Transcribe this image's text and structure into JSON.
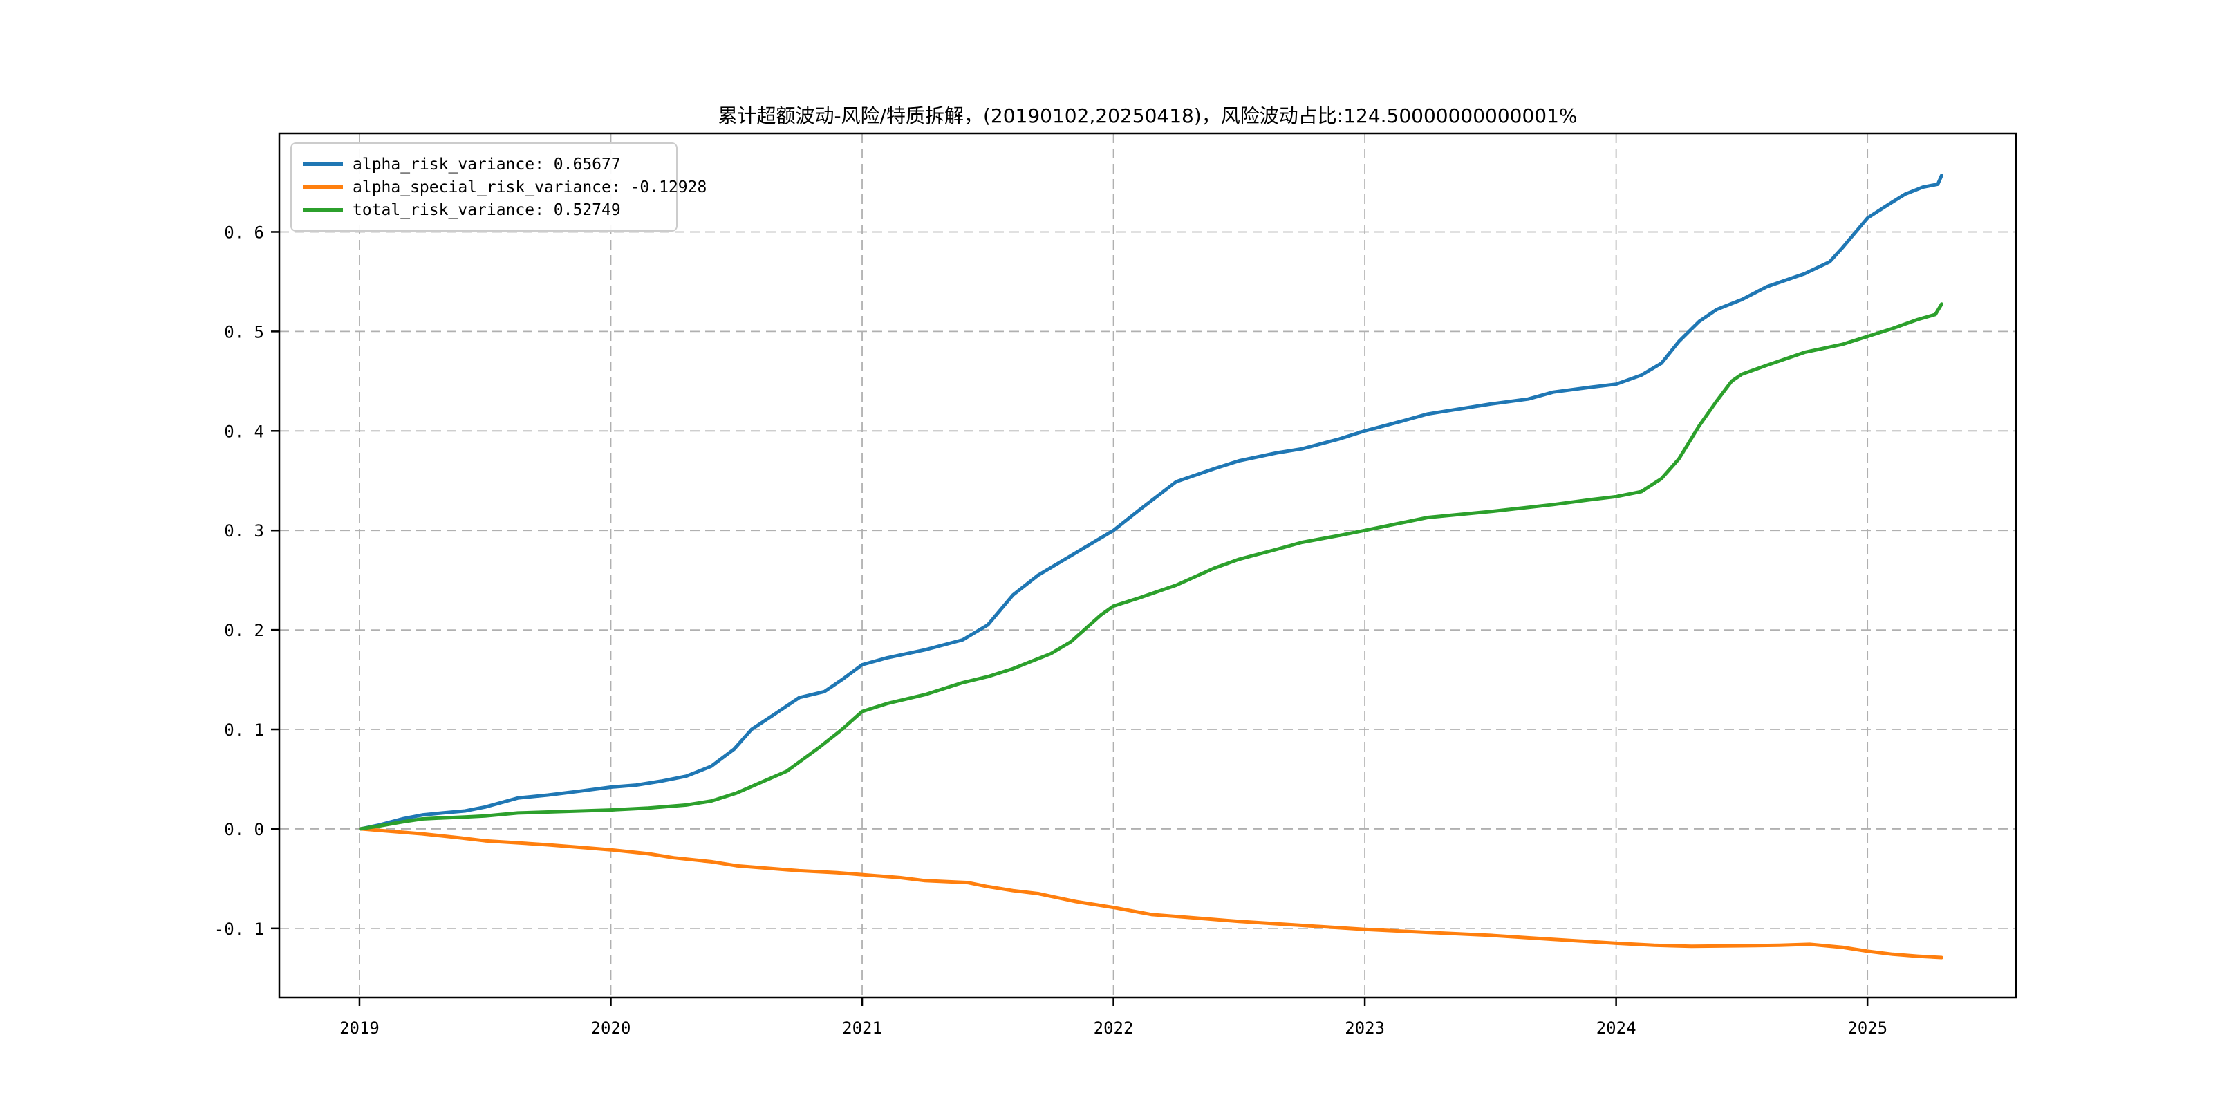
{
  "title": "累计超额波动-风险/特质拆解，(20190102,20250418)，风险波动占比:124.50000000000001%",
  "colors": {
    "blue": "#1f77b4",
    "orange": "#ff7f0e",
    "green": "#2ca02c",
    "grid": "#b0b0b0",
    "frame": "#000000",
    "background": "#ffffff",
    "legend_border": "#cccccc"
  },
  "legend": {
    "position": "upper left",
    "items": [
      {
        "label": "alpha_risk_variance: 0.65677",
        "color": "#1f77b4"
      },
      {
        "label": "alpha_special_risk_variance: -0.12928",
        "color": "#ff7f0e"
      },
      {
        "label": "total_risk_variance: 0.52749",
        "color": "#2ca02c"
      }
    ]
  },
  "chart_data": {
    "type": "line",
    "title": "累计超额波动-风险/特质拆解，(20190102,20250418)，风险波动占比:124.50000000000001%",
    "start_date": "20190102",
    "end_date": "20250418",
    "risk_vol_ratio_label": "124.50000000000001%",
    "xlabel": "",
    "ylabel": "",
    "grid": true,
    "grid_style": "dashed",
    "legend_position": "upper left",
    "xlim": [
      2018.681,
      2025.591
    ],
    "ylim": [
      -0.1696,
      0.699
    ],
    "x_ticks": [
      2019,
      2020,
      2021,
      2022,
      2023,
      2024,
      2025
    ],
    "x_tick_labels": [
      "2019",
      "2020",
      "2021",
      "2022",
      "2023",
      "2024",
      "2025"
    ],
    "y_ticks": [
      -0.1,
      0.0,
      0.1,
      0.2,
      0.3,
      0.4,
      0.5,
      0.6
    ],
    "y_tick_labels": [
      "-0. 1",
      "0. 0",
      "0. 1",
      "0. 2",
      "0. 3",
      "0. 4",
      "0. 5",
      "0. 6"
    ],
    "series": [
      {
        "name": "alpha_risk_variance",
        "final_value": 0.65677,
        "color": "#1f77b4",
        "points": [
          [
            2019.005,
            0.0
          ],
          [
            2019.08,
            0.004
          ],
          [
            2019.17,
            0.01
          ],
          [
            2019.25,
            0.014
          ],
          [
            2019.33,
            0.016
          ],
          [
            2019.42,
            0.018
          ],
          [
            2019.5,
            0.022
          ],
          [
            2019.63,
            0.031
          ],
          [
            2019.75,
            0.034
          ],
          [
            2019.88,
            0.038
          ],
          [
            2020.0,
            0.042
          ],
          [
            2020.1,
            0.044
          ],
          [
            2020.2,
            0.048
          ],
          [
            2020.3,
            0.053
          ],
          [
            2020.4,
            0.063
          ],
          [
            2020.49,
            0.08
          ],
          [
            2020.56,
            0.1
          ],
          [
            2020.65,
            0.115
          ],
          [
            2020.75,
            0.132
          ],
          [
            2020.85,
            0.138
          ],
          [
            2020.92,
            0.15
          ],
          [
            2021.0,
            0.165
          ],
          [
            2021.1,
            0.172
          ],
          [
            2021.25,
            0.18
          ],
          [
            2021.4,
            0.19
          ],
          [
            2021.5,
            0.205
          ],
          [
            2021.6,
            0.235
          ],
          [
            2021.7,
            0.255
          ],
          [
            2021.8,
            0.27
          ],
          [
            2021.9,
            0.285
          ],
          [
            2022.0,
            0.3
          ],
          [
            2022.1,
            0.32
          ],
          [
            2022.25,
            0.349
          ],
          [
            2022.4,
            0.362
          ],
          [
            2022.5,
            0.37
          ],
          [
            2022.65,
            0.378
          ],
          [
            2022.75,
            0.382
          ],
          [
            2022.9,
            0.392
          ],
          [
            2023.0,
            0.4
          ],
          [
            2023.15,
            0.41
          ],
          [
            2023.25,
            0.417
          ],
          [
            2023.5,
            0.427
          ],
          [
            2023.65,
            0.432
          ],
          [
            2023.75,
            0.439
          ],
          [
            2023.9,
            0.444
          ],
          [
            2024.0,
            0.447
          ],
          [
            2024.1,
            0.456
          ],
          [
            2024.18,
            0.468
          ],
          [
            2024.25,
            0.49
          ],
          [
            2024.33,
            0.51
          ],
          [
            2024.4,
            0.522
          ],
          [
            2024.5,
            0.532
          ],
          [
            2024.6,
            0.545
          ],
          [
            2024.75,
            0.558
          ],
          [
            2024.85,
            0.57
          ],
          [
            2024.9,
            0.584
          ],
          [
            2025.0,
            0.614
          ],
          [
            2025.08,
            0.627
          ],
          [
            2025.15,
            0.638
          ],
          [
            2025.22,
            0.645
          ],
          [
            2025.28,
            0.648
          ],
          [
            2025.295,
            0.65677
          ]
        ]
      },
      {
        "name": "alpha_special_risk_variance",
        "final_value": -0.12928,
        "color": "#ff7f0e",
        "points": [
          [
            2019.005,
            0.0
          ],
          [
            2019.1,
            -0.002
          ],
          [
            2019.25,
            -0.005
          ],
          [
            2019.4,
            -0.009
          ],
          [
            2019.5,
            -0.012
          ],
          [
            2019.63,
            -0.014
          ],
          [
            2019.75,
            -0.016
          ],
          [
            2019.9,
            -0.019
          ],
          [
            2020.0,
            -0.021
          ],
          [
            2020.15,
            -0.025
          ],
          [
            2020.25,
            -0.029
          ],
          [
            2020.4,
            -0.033
          ],
          [
            2020.5,
            -0.037
          ],
          [
            2020.6,
            -0.039
          ],
          [
            2020.75,
            -0.042
          ],
          [
            2020.9,
            -0.044
          ],
          [
            2021.0,
            -0.046
          ],
          [
            2021.15,
            -0.049
          ],
          [
            2021.25,
            -0.052
          ],
          [
            2021.42,
            -0.054
          ],
          [
            2021.5,
            -0.058
          ],
          [
            2021.6,
            -0.062
          ],
          [
            2021.7,
            -0.065
          ],
          [
            2021.85,
            -0.073
          ],
          [
            2022.0,
            -0.079
          ],
          [
            2022.15,
            -0.086
          ],
          [
            2022.3,
            -0.089
          ],
          [
            2022.5,
            -0.093
          ],
          [
            2022.75,
            -0.097
          ],
          [
            2023.0,
            -0.101
          ],
          [
            2023.25,
            -0.104
          ],
          [
            2023.5,
            -0.107
          ],
          [
            2023.75,
            -0.111
          ],
          [
            2024.0,
            -0.115
          ],
          [
            2024.15,
            -0.117
          ],
          [
            2024.3,
            -0.118
          ],
          [
            2024.5,
            -0.1175
          ],
          [
            2024.65,
            -0.117
          ],
          [
            2024.77,
            -0.116
          ],
          [
            2024.9,
            -0.119
          ],
          [
            2025.0,
            -0.123
          ],
          [
            2025.1,
            -0.126
          ],
          [
            2025.2,
            -0.128
          ],
          [
            2025.295,
            -0.12928
          ]
        ]
      },
      {
        "name": "total_risk_variance",
        "final_value": 0.52749,
        "color": "#2ca02c",
        "points": [
          [
            2019.005,
            0.0
          ],
          [
            2019.08,
            0.003
          ],
          [
            2019.17,
            0.007
          ],
          [
            2019.25,
            0.01
          ],
          [
            2019.33,
            0.011
          ],
          [
            2019.42,
            0.012
          ],
          [
            2019.5,
            0.013
          ],
          [
            2019.63,
            0.016
          ],
          [
            2019.75,
            0.017
          ],
          [
            2019.88,
            0.018
          ],
          [
            2020.0,
            0.019
          ],
          [
            2020.15,
            0.021
          ],
          [
            2020.3,
            0.024
          ],
          [
            2020.4,
            0.028
          ],
          [
            2020.5,
            0.036
          ],
          [
            2020.6,
            0.047
          ],
          [
            2020.7,
            0.058
          ],
          [
            2020.83,
            0.082
          ],
          [
            2020.92,
            0.1
          ],
          [
            2021.0,
            0.118
          ],
          [
            2021.1,
            0.126
          ],
          [
            2021.25,
            0.135
          ],
          [
            2021.4,
            0.147
          ],
          [
            2021.5,
            0.153
          ],
          [
            2021.6,
            0.161
          ],
          [
            2021.75,
            0.176
          ],
          [
            2021.83,
            0.188
          ],
          [
            2021.95,
            0.215
          ],
          [
            2022.0,
            0.224
          ],
          [
            2022.1,
            0.232
          ],
          [
            2022.25,
            0.245
          ],
          [
            2022.4,
            0.262
          ],
          [
            2022.5,
            0.271
          ],
          [
            2022.65,
            0.281
          ],
          [
            2022.75,
            0.288
          ],
          [
            2022.9,
            0.295
          ],
          [
            2023.0,
            0.3
          ],
          [
            2023.25,
            0.313
          ],
          [
            2023.5,
            0.319
          ],
          [
            2023.75,
            0.326
          ],
          [
            2023.9,
            0.331
          ],
          [
            2024.0,
            0.334
          ],
          [
            2024.1,
            0.339
          ],
          [
            2024.18,
            0.352
          ],
          [
            2024.25,
            0.372
          ],
          [
            2024.33,
            0.405
          ],
          [
            2024.4,
            0.43
          ],
          [
            2024.46,
            0.45
          ],
          [
            2024.5,
            0.457
          ],
          [
            2024.6,
            0.466
          ],
          [
            2024.75,
            0.479
          ],
          [
            2024.9,
            0.487
          ],
          [
            2025.0,
            0.495
          ],
          [
            2025.1,
            0.503
          ],
          [
            2025.2,
            0.512
          ],
          [
            2025.27,
            0.517
          ],
          [
            2025.295,
            0.52749
          ]
        ]
      }
    ]
  }
}
